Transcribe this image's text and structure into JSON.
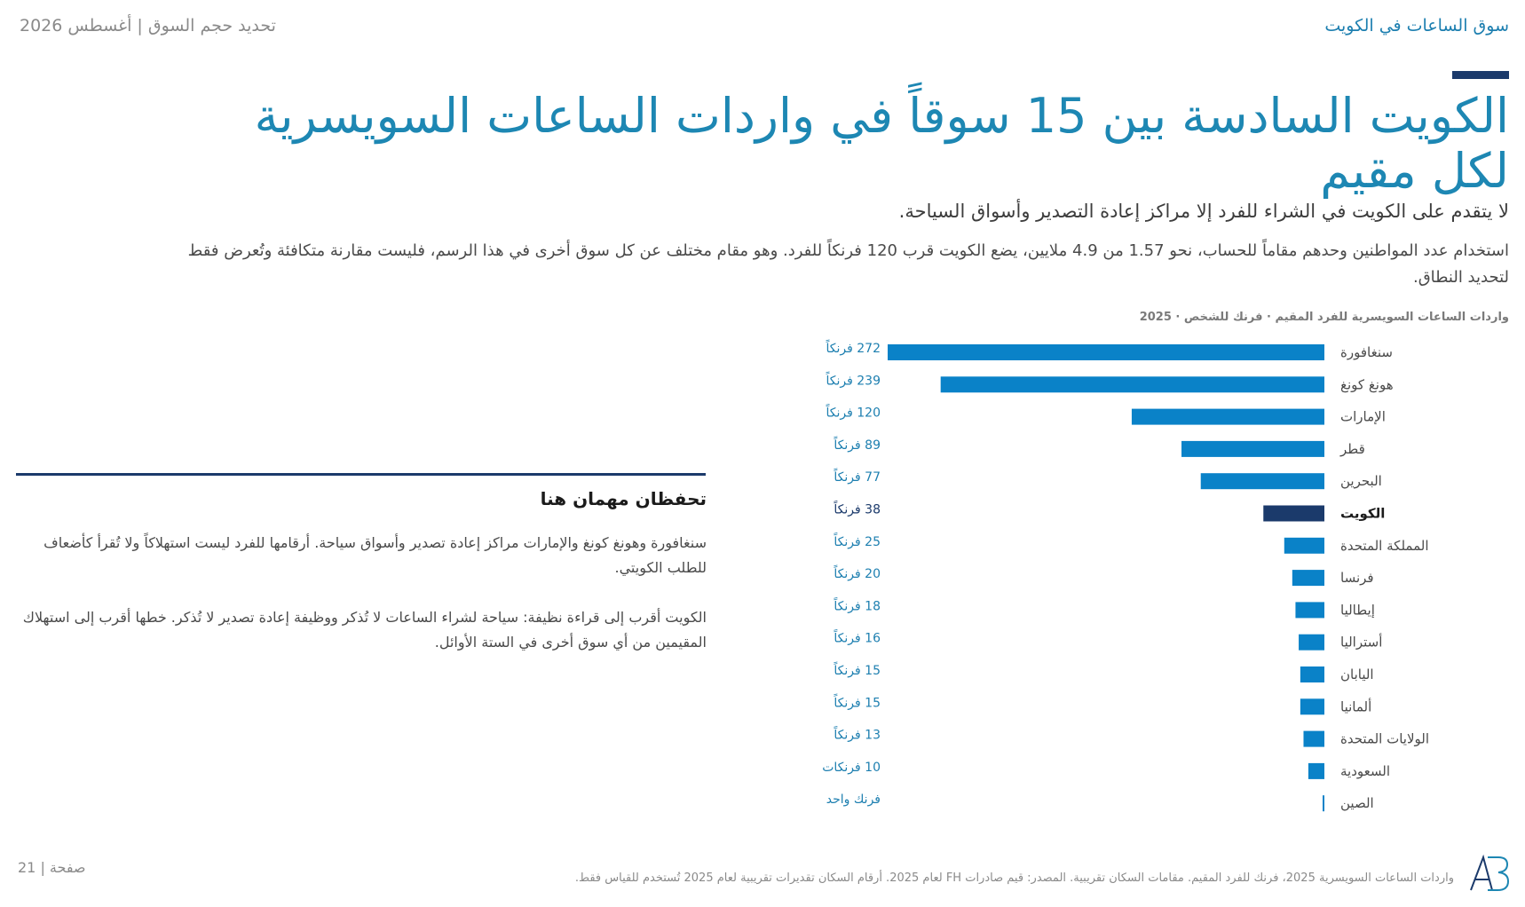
{
  "header": {
    "section_title": "سوق الساعات في الكويت",
    "report_info": "تحديد حجم السوق | أغسطس 2026"
  },
  "headline": "الكويت السادسة بين 15 سوقاً في واردات الساعات السويسرية لكل مقيم",
  "subtitle": "لا يتقدم على الكويت في الشراء للفرد إلا مراكز إعادة التصدير وأسواق السياحة.",
  "body": "استخدام عدد المواطنين وحدهم مقاماً للحساب، نحو 1.57 من 4.9 ملايين، يضع الكويت قرب 120 فرنكاً للفرد. وهو مقام مختلف عن كل سوق أخرى في هذا الرسم، فليست مقارنة متكافئة وتُعرض فقط لتحديد النطاق.",
  "chart_caption": "واردات الساعات السويسرية للفرد المقيم · فرنك للشخص · 2025",
  "chart_data": {
    "type": "bar",
    "orientation": "horizontal",
    "categories": [
      "سنغافورة",
      "هونغ كونغ",
      "الإمارات",
      "قطر",
      "البحرين",
      "الكويت",
      "المملكة المتحدة",
      "فرنسا",
      "إيطاليا",
      "أستراليا",
      "اليابان",
      "ألمانيا",
      "الولايات المتحدة",
      "السعودية",
      "الصين"
    ],
    "values": [
      272,
      239,
      120,
      89,
      77,
      38,
      25,
      20,
      18,
      16,
      15,
      15,
      13,
      10,
      1
    ],
    "value_labels": [
      "272 فرنكاً",
      "239 فرنكاً",
      "120 فرنكاً",
      "89 فرنكاً",
      "77 فرنكاً",
      "38 فرنكاً",
      "25 فرنكاً",
      "20 فرنكاً",
      "18 فرنكاً",
      "16 فرنكاً",
      "15 فرنكاً",
      "15 فرنكاً",
      "13 فرنكاً",
      "10 فرنكات",
      "فرنك واحد"
    ],
    "highlight": "الكويت",
    "colors": {
      "bar": "#0a82c8",
      "highlight": "#1b3a6b",
      "label": "#1d7fb0"
    },
    "xlim": [
      0,
      272
    ]
  },
  "side_panel": {
    "title": "تحفظان مهمان هنا",
    "paragraphs": [
      "سنغافورة وهونغ كونغ والإمارات مراكز إعادة تصدير وأسواق سياحة. أرقامها للفرد ليست استهلاكاً ولا تُقرأ كأضعاف للطلب الكويتي.",
      "الكويت أقرب إلى قراءة نظيفة: سياحة لشراء الساعات لا تُذكر ووظيفة إعادة تصدير لا تُذكر. خطها أقرب إلى استهلاك المقيمين من أي سوق أخرى في الستة الأوائل."
    ]
  },
  "footer": {
    "note": "واردات الساعات السويسرية 2025، فرنك للفرد المقيم. مقامات السكان تقريبية. المصدر: قيم صادرات FH لعام 2025. أرقام السكان تقديرات تقريبية لعام 2025 تُستخدم للقياس فقط.",
    "page": "صفحة | 21",
    "logo_icon": "ab-monogram-icon"
  }
}
